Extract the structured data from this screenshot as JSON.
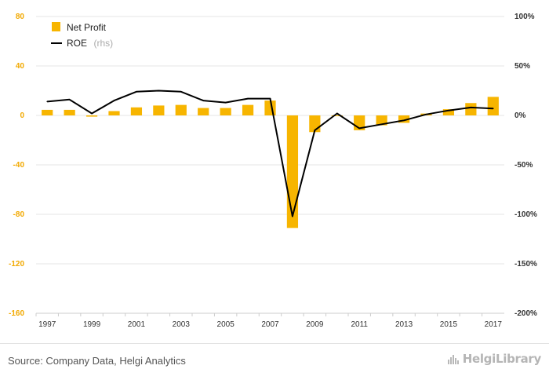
{
  "chart_data": {
    "type": "bar",
    "title": "",
    "x": [
      1997,
      1998,
      1999,
      2000,
      2001,
      2002,
      2003,
      2004,
      2005,
      2006,
      2007,
      2008,
      2009,
      2010,
      2011,
      2012,
      2013,
      2014,
      2015,
      2016,
      2017
    ],
    "x_tick_labels": [
      "1997",
      "1999",
      "2001",
      "2003",
      "2005",
      "2007",
      "2009",
      "2011",
      "2013",
      "2015",
      "2017"
    ],
    "series": [
      {
        "name": "Net Profit",
        "type": "bar",
        "axis": "left",
        "color": "#f7b500",
        "values": [
          4.5,
          4.5,
          -1,
          3.5,
          6.5,
          8,
          8.5,
          6,
          6,
          8.5,
          12,
          -91,
          -13.5,
          0,
          -12,
          -8,
          -6,
          1.5,
          5,
          10,
          15
        ]
      },
      {
        "name": "ROE",
        "name_suffix": "(rhs)",
        "type": "line",
        "axis": "right",
        "color": "#000000",
        "values": [
          14,
          16,
          2,
          15,
          24,
          25,
          24,
          15,
          13,
          17,
          17,
          -102,
          -15,
          2,
          -13,
          -9,
          -5,
          1,
          5,
          8,
          7
        ]
      }
    ],
    "y_left": {
      "ylim": [
        -160,
        80
      ],
      "ticks": [
        "80",
        "40",
        "0",
        "-40",
        "-80",
        "-120",
        "-160"
      ],
      "tick_values": [
        80,
        40,
        0,
        -40,
        -80,
        -120,
        -160
      ]
    },
    "y_right": {
      "ylim": [
        -200,
        100
      ],
      "ticks": [
        "100%",
        "50%",
        "0%",
        "-50%",
        "-100%",
        "-150%",
        "-200%"
      ],
      "tick_values": [
        100,
        50,
        0,
        -50,
        -100,
        -150,
        -200
      ]
    },
    "grid": true,
    "legend_position": "top-left"
  },
  "footer": {
    "source": "Source: Company Data, Helgi Analytics",
    "brand": "HelgiLibrary"
  },
  "colors": {
    "bar": "#f7b500",
    "line": "#000000",
    "grid": "#e6e6e6",
    "left_axis_text": "#f2a900"
  },
  "icons": {
    "brand": "bar-chart-logo-icon"
  }
}
